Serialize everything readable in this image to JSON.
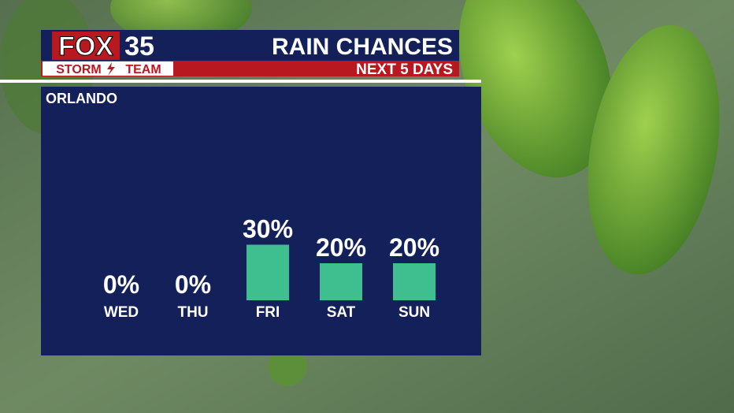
{
  "brand": {
    "network": "FOX",
    "channel": "35",
    "team_left": "STORM",
    "team_right": "TEAM"
  },
  "chart_data": {
    "type": "bar",
    "title": "RAIN CHANCES",
    "subtitle": "NEXT 5 DAYS",
    "location": "ORLANDO",
    "categories": [
      "WED",
      "THU",
      "FRI",
      "SAT",
      "SUN"
    ],
    "values": [
      0,
      0,
      30,
      20,
      20
    ],
    "value_labels": [
      "0%",
      "0%",
      "30%",
      "20%",
      "20%"
    ],
    "color": "#3fbf8f"
  }
}
